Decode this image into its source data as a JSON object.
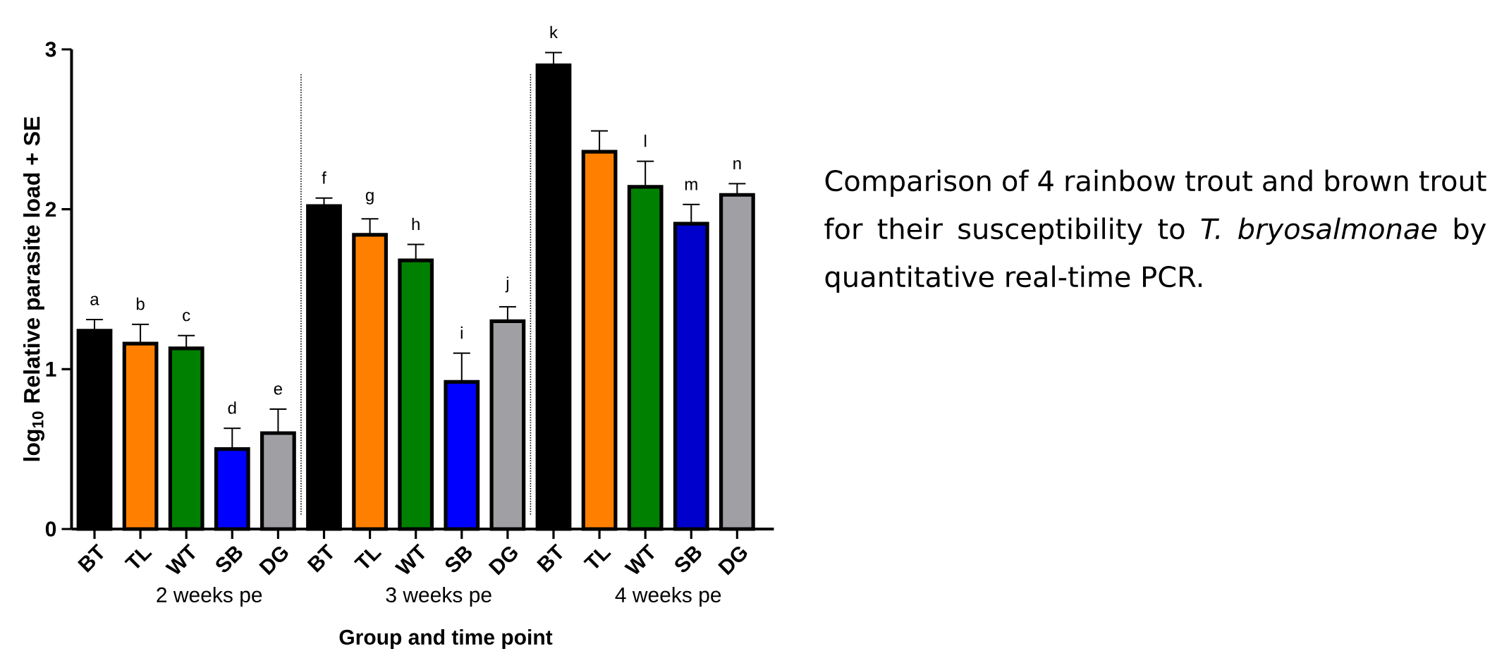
{
  "chart_data": {
    "type": "bar",
    "xlabel": "Group and time point",
    "ylabel": "log$_{10}$ Relative parasite load  + SE",
    "categories": [
      "BT",
      "TL",
      "WT",
      "SB",
      "DG",
      "BT",
      "TL",
      "WT",
      "SB",
      "DG",
      "BT",
      "TL",
      "WT",
      "SB",
      "DG"
    ],
    "values": [
      1.24,
      1.16,
      1.13,
      0.5,
      0.6,
      2.02,
      1.84,
      1.68,
      0.92,
      1.3,
      2.9,
      2.36,
      2.14,
      1.91,
      2.09
    ],
    "errors": [
      0.07,
      0.12,
      0.08,
      0.13,
      0.15,
      0.05,
      0.1,
      0.1,
      0.18,
      0.09,
      0.08,
      0.13,
      0.16,
      0.12,
      0.07
    ],
    "colors": [
      "#000000",
      "#ff8000",
      "#008000",
      "#0000ff",
      "#a0a0a4",
      "#000000",
      "#ff8000",
      "#008000",
      "#0000ff",
      "#a0a0a4",
      "#000000",
      "#ff8000",
      "#008000",
      "#0000cc",
      "#a0a0a4"
    ],
    "value_labels": [
      "a",
      "b",
      "c",
      "d",
      "e",
      "f",
      "g",
      "h",
      "i",
      "j",
      "k",
      null,
      "l",
      "m",
      "n"
    ],
    "ylim": [
      0,
      3
    ],
    "yticks": [
      0,
      1,
      2,
      3
    ],
    "annotations": [
      "2 weeks pe",
      "3 weeks pe",
      "4 weeks pe",
      "Comparison of 4 rainbow trout and brown trout for their susceptibility to *T. bryosalmonae* by quantitative real-time PCR."
    ]
  }
}
